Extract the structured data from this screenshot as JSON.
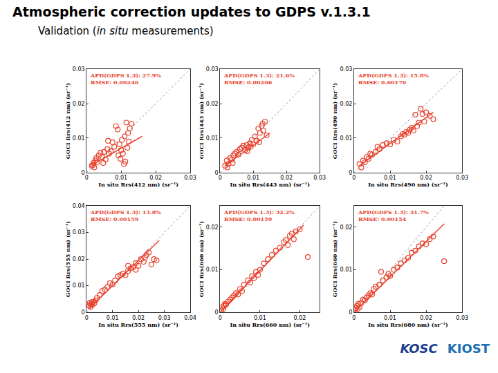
{
  "header": {
    "title": "Atmospheric correction updates to GDPS v.1.3.1",
    "subtitle_parts": [
      {
        "text": "Validation (",
        "italic": false
      },
      {
        "text": "in situ",
        "italic": true
      },
      {
        "text": " measurements)",
        "italic": false
      }
    ]
  },
  "logos": [
    "KOSC",
    "KIOST"
  ],
  "chart_data": [
    {
      "type": "scatter",
      "marker": "circle-open",
      "color": "#e8412c",
      "x_label": "In situ Rrs(412 nm) (sr⁻¹)",
      "y_label": "GOCI Rrs(412 nm) (sr⁻¹)",
      "annotations": [
        "APD(GDPS 1.3): 27.9%",
        "RMSE: 0.00246"
      ],
      "xlim": [
        0,
        0.03
      ],
      "xticks": [
        0,
        0.01,
        0.02,
        0.03
      ],
      "ylim": [
        0,
        0.03
      ],
      "yticks": [
        0,
        0.01,
        0.02,
        0.03
      ],
      "x": [
        0.0015,
        0.002,
        0.0022,
        0.0025,
        0.003,
        0.0018,
        0.0028,
        0.0035,
        0.004,
        0.0045,
        0.005,
        0.0055,
        0.006,
        0.0065,
        0.007,
        0.0075,
        0.008,
        0.0085,
        0.009,
        0.0095,
        0.0098,
        0.01,
        0.0102,
        0.0105,
        0.011,
        0.0112,
        0.0115,
        0.012,
        0.0122,
        0.0125,
        0.013,
        0.0108,
        0.0092,
        0.0118,
        0.0062,
        0.0048
      ],
      "values": [
        0.002,
        0.0028,
        0.0015,
        0.0035,
        0.003,
        0.0022,
        0.0042,
        0.005,
        0.0058,
        0.0045,
        0.006,
        0.0038,
        0.0068,
        0.0055,
        0.0062,
        0.0088,
        0.0075,
        0.0135,
        0.0125,
        0.0082,
        0.004,
        0.0065,
        0.0095,
        0.0055,
        0.0105,
        0.0032,
        0.0145,
        0.0115,
        0.009,
        0.0128,
        0.0142,
        0.0025,
        0.005,
        0.0072,
        0.0092,
        0.0028
      ],
      "fit_line": {
        "x": [
          0.0015,
          0.016
        ],
        "values": [
          0.0022,
          0.0105
        ]
      }
    },
    {
      "type": "scatter",
      "marker": "circle-open",
      "color": "#e8412c",
      "x_label": "In situ Rrs(443 nm) (sr⁻¹)",
      "y_label": "GOCI Rrs(443 nm) (sr⁻¹)",
      "annotations": [
        "APD(GDPS 1.3): 21.6%",
        "RMSE: 0.00206"
      ],
      "xlim": [
        0,
        0.03
      ],
      "xticks": [
        0,
        0.01,
        0.02,
        0.03
      ],
      "ylim": [
        0,
        0.03
      ],
      "yticks": [
        0,
        0.01,
        0.02,
        0.03
      ],
      "x": [
        0.0015,
        0.002,
        0.0025,
        0.003,
        0.0022,
        0.0035,
        0.004,
        0.0045,
        0.005,
        0.0055,
        0.006,
        0.0065,
        0.007,
        0.0075,
        0.008,
        0.0085,
        0.009,
        0.0095,
        0.01,
        0.0105,
        0.011,
        0.0115,
        0.012,
        0.0125,
        0.013,
        0.0135,
        0.014,
        0.0082,
        0.0092,
        0.0118,
        0.0128,
        0.0038
      ],
      "values": [
        0.002,
        0.0035,
        0.0025,
        0.0042,
        0.0015,
        0.0038,
        0.005,
        0.0055,
        0.006,
        0.0052,
        0.0068,
        0.0072,
        0.0078,
        0.0065,
        0.008,
        0.0072,
        0.0085,
        0.0095,
        0.0082,
        0.0105,
        0.0092,
        0.0128,
        0.0115,
        0.0135,
        0.0122,
        0.0148,
        0.0108,
        0.0062,
        0.0075,
        0.0088,
        0.0142,
        0.0028
      ],
      "fit_line": {
        "x": [
          0.0015,
          0.015
        ],
        "values": [
          0.002,
          0.0115
        ]
      }
    },
    {
      "type": "scatter",
      "marker": "circle-open",
      "color": "#e8412c",
      "x_label": "In situ Rrs(490 nm) (sr⁻¹)",
      "y_label": "GOCI Rrs(490 nm) (sr⁻¹)",
      "annotations": [
        "APD(GDPS 1.3): 15.8%",
        "RMSE: 0.00170"
      ],
      "xlim": [
        0,
        0.03
      ],
      "xticks": [
        0,
        0.01,
        0.02,
        0.03
      ],
      "ylim": [
        0,
        0.03
      ],
      "yticks": [
        0,
        0.01,
        0.02,
        0.03
      ],
      "x": [
        0.0015,
        0.002,
        0.0025,
        0.003,
        0.0035,
        0.004,
        0.0045,
        0.005,
        0.006,
        0.0065,
        0.007,
        0.008,
        0.009,
        0.01,
        0.011,
        0.012,
        0.013,
        0.0135,
        0.014,
        0.0145,
        0.015,
        0.0155,
        0.016,
        0.0165,
        0.017,
        0.0175,
        0.018,
        0.019,
        0.02,
        0.021,
        0.022,
        0.0185,
        0.0195
      ],
      "values": [
        0.0025,
        0.0015,
        0.0035,
        0.003,
        0.0045,
        0.004,
        0.0055,
        0.0052,
        0.006,
        0.0075,
        0.0068,
        0.008,
        0.0085,
        0.0082,
        0.0095,
        0.009,
        0.0105,
        0.0112,
        0.011,
        0.0118,
        0.0115,
        0.0125,
        0.013,
        0.0122,
        0.0168,
        0.0135,
        0.0145,
        0.017,
        0.0175,
        0.0165,
        0.0155,
        0.0185,
        0.0148
      ],
      "fit_line": {
        "x": [
          0.0015,
          0.022
        ],
        "values": [
          0.002,
          0.0175
        ]
      }
    },
    {
      "type": "scatter",
      "marker": "circle-open",
      "color": "#e8412c",
      "x_label": "In situ Rrs(555 nm) (sr⁻¹)",
      "y_label": "GOCI Rrs(555 nm) (sr⁻¹)",
      "annotations": [
        "APD(GDPS 1.3): 13.8%",
        "RMSE: 0.00159"
      ],
      "xlim": [
        0,
        0.04
      ],
      "xticks": [
        0,
        0.01,
        0.02,
        0.03,
        0.04
      ],
      "ylim": [
        0,
        0.04
      ],
      "yticks": [
        0,
        0.01,
        0.02,
        0.03,
        0.04
      ],
      "x": [
        0.001,
        0.0012,
        0.0015,
        0.0018,
        0.002,
        0.0022,
        0.0025,
        0.003,
        0.0035,
        0.004,
        0.005,
        0.006,
        0.007,
        0.008,
        0.009,
        0.01,
        0.011,
        0.012,
        0.013,
        0.014,
        0.015,
        0.016,
        0.017,
        0.018,
        0.019,
        0.02,
        0.021,
        0.022,
        0.023,
        0.024,
        0.025,
        0.026,
        0.027,
        0.016,
        0.019,
        0.0225
      ],
      "values": [
        0.0025,
        0.0035,
        0.002,
        0.003,
        0.0038,
        0.0028,
        0.004,
        0.0035,
        0.0045,
        0.0055,
        0.0065,
        0.008,
        0.0085,
        0.0095,
        0.011,
        0.0105,
        0.012,
        0.0135,
        0.014,
        0.0145,
        0.014,
        0.0155,
        0.0165,
        0.017,
        0.0185,
        0.0175,
        0.02,
        0.019,
        0.0215,
        0.0225,
        0.018,
        0.02,
        0.0195,
        0.0175,
        0.016,
        0.0205
      ],
      "fit_line": {
        "x": [
          0.001,
          0.028
        ],
        "values": [
          0.0015,
          0.027
        ]
      }
    },
    {
      "type": "scatter",
      "marker": "circle-open",
      "color": "#e8412c",
      "x_label": "In situ Rrs(660 nm) (sr⁻¹)",
      "y_label": "GOCI Rrs(660 nm) (sr⁻¹)",
      "annotations": [
        "APD(GDPS 1.3): 32.2%",
        "RMSE: 0.00159"
      ],
      "xlim": [
        0,
        0.025
      ],
      "xticks": [
        0,
        0.01,
        0.02
      ],
      "ylim": [
        0,
        0.025
      ],
      "yticks": [
        0,
        0.01,
        0.02
      ],
      "x": [
        0.0003,
        0.0005,
        0.0008,
        0.001,
        0.0012,
        0.0015,
        0.002,
        0.0025,
        0.003,
        0.0035,
        0.004,
        0.0045,
        0.005,
        0.0055,
        0.006,
        0.007,
        0.0075,
        0.008,
        0.0085,
        0.009,
        0.0095,
        0.01,
        0.011,
        0.012,
        0.013,
        0.014,
        0.015,
        0.016,
        0.0165,
        0.017,
        0.0175,
        0.018,
        0.019,
        0.02,
        0.022,
        0.0185
      ],
      "values": [
        0.0005,
        0.0012,
        0.0008,
        0.0015,
        0.002,
        0.0018,
        0.0025,
        0.003,
        0.0035,
        0.004,
        0.0045,
        0.0042,
        0.0055,
        0.005,
        0.0065,
        0.0075,
        0.007,
        0.0085,
        0.008,
        0.0095,
        0.0088,
        0.01,
        0.0115,
        0.0125,
        0.0135,
        0.0145,
        0.0152,
        0.0165,
        0.017,
        0.0158,
        0.018,
        0.0185,
        0.019,
        0.0195,
        0.013,
        0.0172
      ],
      "fit_line": {
        "x": [
          0,
          0.021
        ],
        "values": [
          0,
          0.0205
        ]
      }
    },
    {
      "type": "scatter",
      "marker": "circle-open",
      "color": "#e8412c",
      "x_label": "In situ Rrs(680 nm) (sr⁻¹)",
      "y_label": "GOCI Rrs(660 nm) (sr⁻¹)",
      "annotations": [
        "APD(GDPS 1.3): 31.7%",
        "RMSE: 0.00154"
      ],
      "xlim": [
        0,
        0.03
      ],
      "xticks": [
        0,
        0.01,
        0.02,
        0.03
      ],
      "ylim": [
        0,
        0.025
      ],
      "yticks": [
        0,
        0.01,
        0.02
      ],
      "x": [
        0.0003,
        0.0005,
        0.0008,
        0.001,
        0.0012,
        0.0015,
        0.002,
        0.0025,
        0.003,
        0.0035,
        0.004,
        0.0045,
        0.005,
        0.0055,
        0.006,
        0.007,
        0.008,
        0.009,
        0.0095,
        0.01,
        0.011,
        0.012,
        0.013,
        0.014,
        0.015,
        0.016,
        0.017,
        0.018,
        0.019,
        0.02,
        0.021,
        0.022,
        0.025,
        0.0075
      ],
      "values": [
        0.0005,
        0.001,
        0.0015,
        0.0008,
        0.002,
        0.0012,
        0.0022,
        0.003,
        0.0028,
        0.0035,
        0.004,
        0.0045,
        0.0042,
        0.0055,
        0.006,
        0.0065,
        0.0075,
        0.0082,
        0.009,
        0.0085,
        0.01,
        0.0105,
        0.0115,
        0.0122,
        0.0128,
        0.014,
        0.0145,
        0.0155,
        0.0162,
        0.016,
        0.0172,
        0.0178,
        0.012,
        0.0095
      ],
      "fit_line": {
        "x": [
          0,
          0.025
        ],
        "values": [
          0,
          0.0208
        ]
      }
    }
  ]
}
